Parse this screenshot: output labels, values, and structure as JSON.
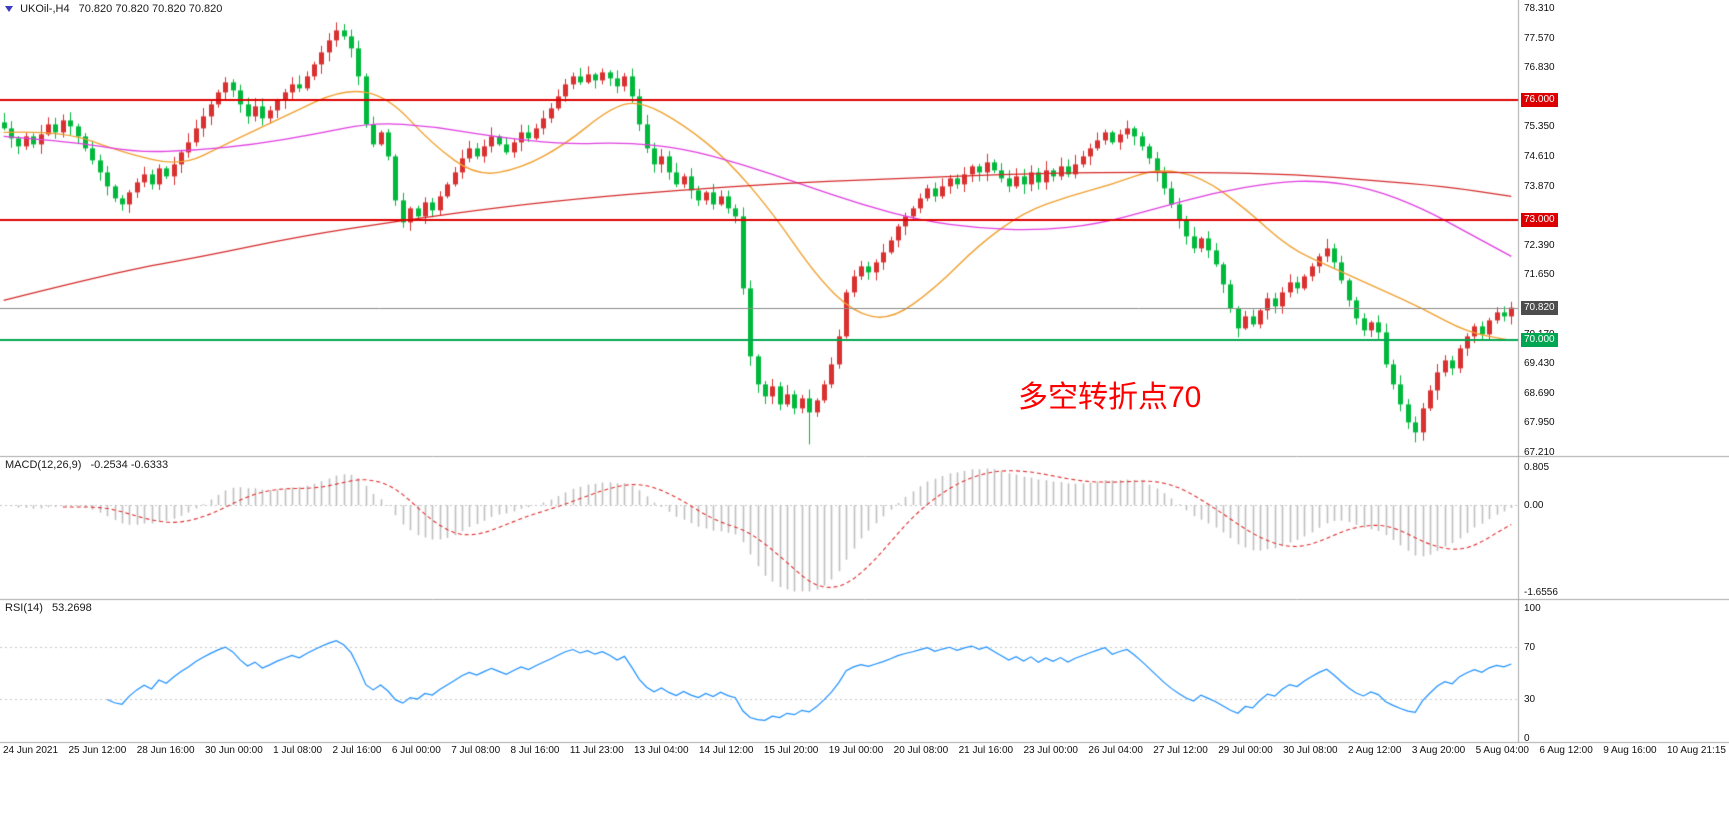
{
  "header": {
    "instrument": "UKOil-,H4",
    "ohlc": "70.820 70.820 70.820 70.820"
  },
  "annotation": {
    "text": "多空转折点70",
    "color": "#ff0000"
  },
  "chart_data": {
    "type": "candlestick",
    "symbol": "UKOil-",
    "timeframe": "H4",
    "current_price": 70.82,
    "ylim": [
      67.21,
      78.31
    ],
    "price_axis_ticks": [
      "78.310",
      "77.570",
      "76.830",
      "75.350",
      "74.610",
      "73.870",
      "72.390",
      "71.650",
      "70.170",
      "69.430",
      "68.690",
      "67.950",
      "67.210"
    ],
    "x_labels": [
      "24 Jun 2021",
      "25 Jun 12:00",
      "28 Jun 16:00",
      "30 Jun 00:00",
      "1 Jul 08:00",
      "2 Jul 16:00",
      "6 Jul 00:00",
      "7 Jul 08:00",
      "8 Jul 16:00",
      "11 Jul 23:00",
      "13 Jul 04:00",
      "14 Jul 12:00",
      "15 Jul 20:00",
      "19 Jul 00:00",
      "20 Jul 08:00",
      "21 Jul 16:00",
      "23 Jul 00:00",
      "26 Jul 04:00",
      "27 Jul 12:00",
      "29 Jul 00:00",
      "30 Jul 08:00",
      "2 Aug 12:00",
      "3 Aug 20:00",
      "5 Aug 04:00",
      "6 Aug 12:00",
      "9 Aug 16:00",
      "10 Aug 21:15"
    ],
    "first_open": 75.45,
    "closes": [
      75.3,
      75.05,
      74.85,
      75.1,
      74.9,
      75.15,
      75.4,
      75.2,
      75.5,
      75.35,
      75.1,
      74.8,
      74.5,
      74.2,
      73.85,
      73.55,
      73.4,
      73.7,
      73.95,
      74.15,
      73.9,
      74.3,
      74.1,
      74.4,
      74.7,
      74.95,
      75.3,
      75.6,
      75.9,
      76.2,
      76.45,
      76.25,
      75.9,
      75.6,
      75.85,
      75.55,
      75.75,
      76.0,
      76.2,
      76.4,
      76.3,
      76.6,
      76.9,
      77.2,
      77.5,
      77.75,
      77.6,
      77.3,
      76.6,
      75.4,
      74.9,
      75.2,
      74.6,
      73.5,
      72.95,
      73.3,
      73.1,
      73.45,
      73.25,
      73.6,
      73.9,
      74.2,
      74.55,
      74.8,
      74.6,
      74.85,
      75.1,
      74.9,
      74.7,
      74.95,
      75.2,
      75.05,
      75.3,
      75.55,
      75.8,
      76.1,
      76.4,
      76.6,
      76.45,
      76.65,
      76.5,
      76.7,
      76.55,
      76.35,
      76.6,
      76.1,
      75.4,
      74.8,
      74.4,
      74.6,
      74.2,
      73.9,
      74.1,
      73.75,
      73.5,
      73.7,
      73.4,
      73.6,
      73.3,
      73.1,
      71.3,
      69.6,
      68.9,
      68.6,
      68.85,
      68.4,
      68.65,
      68.3,
      68.55,
      68.2,
      68.5,
      68.9,
      69.4,
      70.1,
      71.2,
      71.6,
      71.85,
      71.7,
      71.95,
      72.2,
      72.5,
      72.85,
      73.1,
      73.3,
      73.55,
      73.8,
      73.6,
      73.85,
      74.05,
      73.9,
      74.15,
      74.35,
      74.2,
      74.45,
      74.25,
      74.05,
      73.85,
      74.1,
      73.9,
      74.2,
      73.95,
      74.25,
      74.1,
      74.35,
      74.15,
      74.4,
      74.6,
      74.8,
      75.0,
      75.2,
      74.95,
      75.15,
      75.3,
      75.1,
      74.85,
      74.55,
      74.2,
      73.8,
      73.4,
      73.0,
      72.6,
      72.3,
      72.55,
      72.25,
      71.9,
      71.4,
      70.8,
      70.3,
      70.6,
      70.4,
      70.75,
      71.05,
      70.85,
      71.2,
      71.45,
      71.3,
      71.6,
      71.85,
      72.1,
      72.3,
      71.95,
      71.5,
      71.0,
      70.55,
      70.25,
      70.45,
      70.2,
      69.4,
      68.9,
      68.4,
      67.95,
      67.7,
      68.3,
      68.75,
      69.2,
      69.5,
      69.3,
      69.8,
      70.1,
      70.35,
      70.15,
      70.5,
      70.7,
      70.6,
      70.82
    ],
    "wick_overrides": {
      "45": {
        "high": 77.95
      },
      "109": {
        "low": 67.4
      },
      "191": {
        "low": 67.45
      }
    },
    "up_color": "#d93030",
    "down_color": "#00b93c",
    "overlays": [
      {
        "name": "ma-fast-orange",
        "color": "#f0a030",
        "points": [
          [
            0,
            75.2
          ],
          [
            8,
            75.25
          ],
          [
            16,
            74.7
          ],
          [
            24,
            74.35
          ],
          [
            30,
            74.9
          ],
          [
            38,
            75.6
          ],
          [
            46,
            76.3
          ],
          [
            52,
            76.1
          ],
          [
            58,
            74.9
          ],
          [
            64,
            74.1
          ],
          [
            70,
            74.3
          ],
          [
            76,
            74.9
          ],
          [
            82,
            75.8
          ],
          [
            86,
            76.0
          ],
          [
            92,
            75.4
          ],
          [
            98,
            74.5
          ],
          [
            104,
            73.2
          ],
          [
            110,
            71.6
          ],
          [
            115,
            70.7
          ],
          [
            120,
            70.5
          ],
          [
            126,
            71.3
          ],
          [
            132,
            72.4
          ],
          [
            138,
            73.2
          ],
          [
            144,
            73.6
          ],
          [
            150,
            73.9
          ],
          [
            156,
            74.3
          ],
          [
            162,
            74.1
          ],
          [
            168,
            73.3
          ],
          [
            174,
            72.3
          ],
          [
            180,
            71.8
          ],
          [
            186,
            71.3
          ],
          [
            192,
            70.8
          ],
          [
            198,
            70.2
          ],
          [
            204,
            70.0
          ]
        ]
      },
      {
        "name": "ma-mid-magenta",
        "color": "#e040e0",
        "points": [
          [
            0,
            75.1
          ],
          [
            10,
            74.95
          ],
          [
            18,
            74.7
          ],
          [
            26,
            74.75
          ],
          [
            34,
            74.9
          ],
          [
            42,
            75.15
          ],
          [
            50,
            75.45
          ],
          [
            58,
            75.35
          ],
          [
            66,
            75.1
          ],
          [
            76,
            74.9
          ],
          [
            84,
            74.95
          ],
          [
            92,
            74.8
          ],
          [
            100,
            74.4
          ],
          [
            108,
            73.9
          ],
          [
            116,
            73.4
          ],
          [
            124,
            73.0
          ],
          [
            132,
            72.8
          ],
          [
            140,
            72.75
          ],
          [
            148,
            72.9
          ],
          [
            156,
            73.3
          ],
          [
            164,
            73.7
          ],
          [
            172,
            73.95
          ],
          [
            178,
            74.0
          ],
          [
            185,
            73.8
          ],
          [
            192,
            73.3
          ],
          [
            198,
            72.7
          ],
          [
            204,
            72.1
          ]
        ]
      },
      {
        "name": "ma-slow-red",
        "color": "#d42a2a",
        "points": [
          [
            0,
            71.0
          ],
          [
            15,
            71.7
          ],
          [
            27,
            72.1
          ],
          [
            40,
            72.6
          ],
          [
            54,
            73.0
          ],
          [
            68,
            73.35
          ],
          [
            81,
            73.6
          ],
          [
            95,
            73.8
          ],
          [
            108,
            73.95
          ],
          [
            122,
            74.05
          ],
          [
            135,
            74.15
          ],
          [
            148,
            74.2
          ],
          [
            162,
            74.2
          ],
          [
            175,
            74.15
          ],
          [
            185,
            74.0
          ],
          [
            195,
            73.85
          ],
          [
            204,
            73.6
          ]
        ]
      }
    ],
    "horizontal_lines": [
      {
        "price": 76.0,
        "label": "76.000",
        "line_color": "#dd0000",
        "badge_color": "#dd0000",
        "line_width": 2
      },
      {
        "price": 73.0,
        "label": "73.000",
        "line_color": "#dd0000",
        "badge_color": "#dd0000",
        "line_width": 2
      },
      {
        "price": 70.0,
        "label": "70.000",
        "line_color": "#00a651",
        "badge_color": "#00a651",
        "line_width": 2
      },
      {
        "price": 70.82,
        "label": "70.820",
        "line_color": "#8a8a8a",
        "badge_color": "#4d4d4d",
        "line_width": 1
      }
    ],
    "indicators": {
      "macd": {
        "title": "MACD(12,26,9)",
        "current": "-0.2534 -0.6333",
        "fast": 12,
        "slow": 26,
        "signal": 9,
        "axis_max": "0.805",
        "axis_zero": "0.00",
        "axis_min": "-1.6556",
        "hist_color": "#c0c0c0",
        "signal_color": "#e03030"
      },
      "rsi": {
        "title": "RSI(14)",
        "current": "53.2698",
        "period": 14,
        "color": "#1e90ff",
        "levels": [
          70,
          30
        ],
        "axis": [
          {
            "label": "100",
            "value": 100
          },
          {
            "label": "70",
            "value": 70
          },
          {
            "label": "30",
            "value": 30
          },
          {
            "label": "0",
            "value": 0
          }
        ]
      }
    }
  }
}
